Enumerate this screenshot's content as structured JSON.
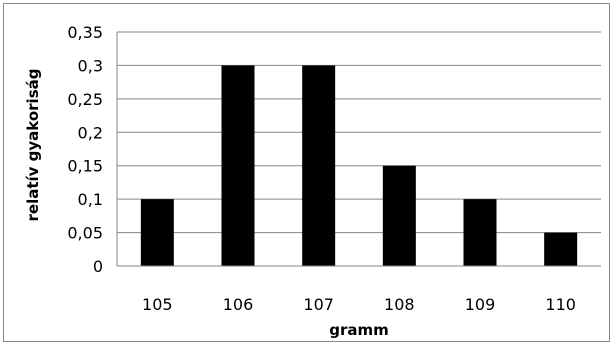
{
  "chart_data": {
    "type": "bar",
    "categories": [
      "105",
      "106",
      "107",
      "108",
      "109",
      "110"
    ],
    "values": [
      0.1,
      0.3,
      0.3,
      0.15,
      0.1,
      0.05
    ],
    "xlabel": "gramm",
    "ylabel": "relatív gyakoriság",
    "ylim": [
      0,
      0.35
    ],
    "yticks": [
      "0",
      "0,05",
      "0,1",
      "0,15",
      "0,2",
      "0,25",
      "0,3",
      "0,35"
    ],
    "grid": true,
    "legend": "none",
    "bar_color": "#000000",
    "grid_color": "#868686"
  }
}
